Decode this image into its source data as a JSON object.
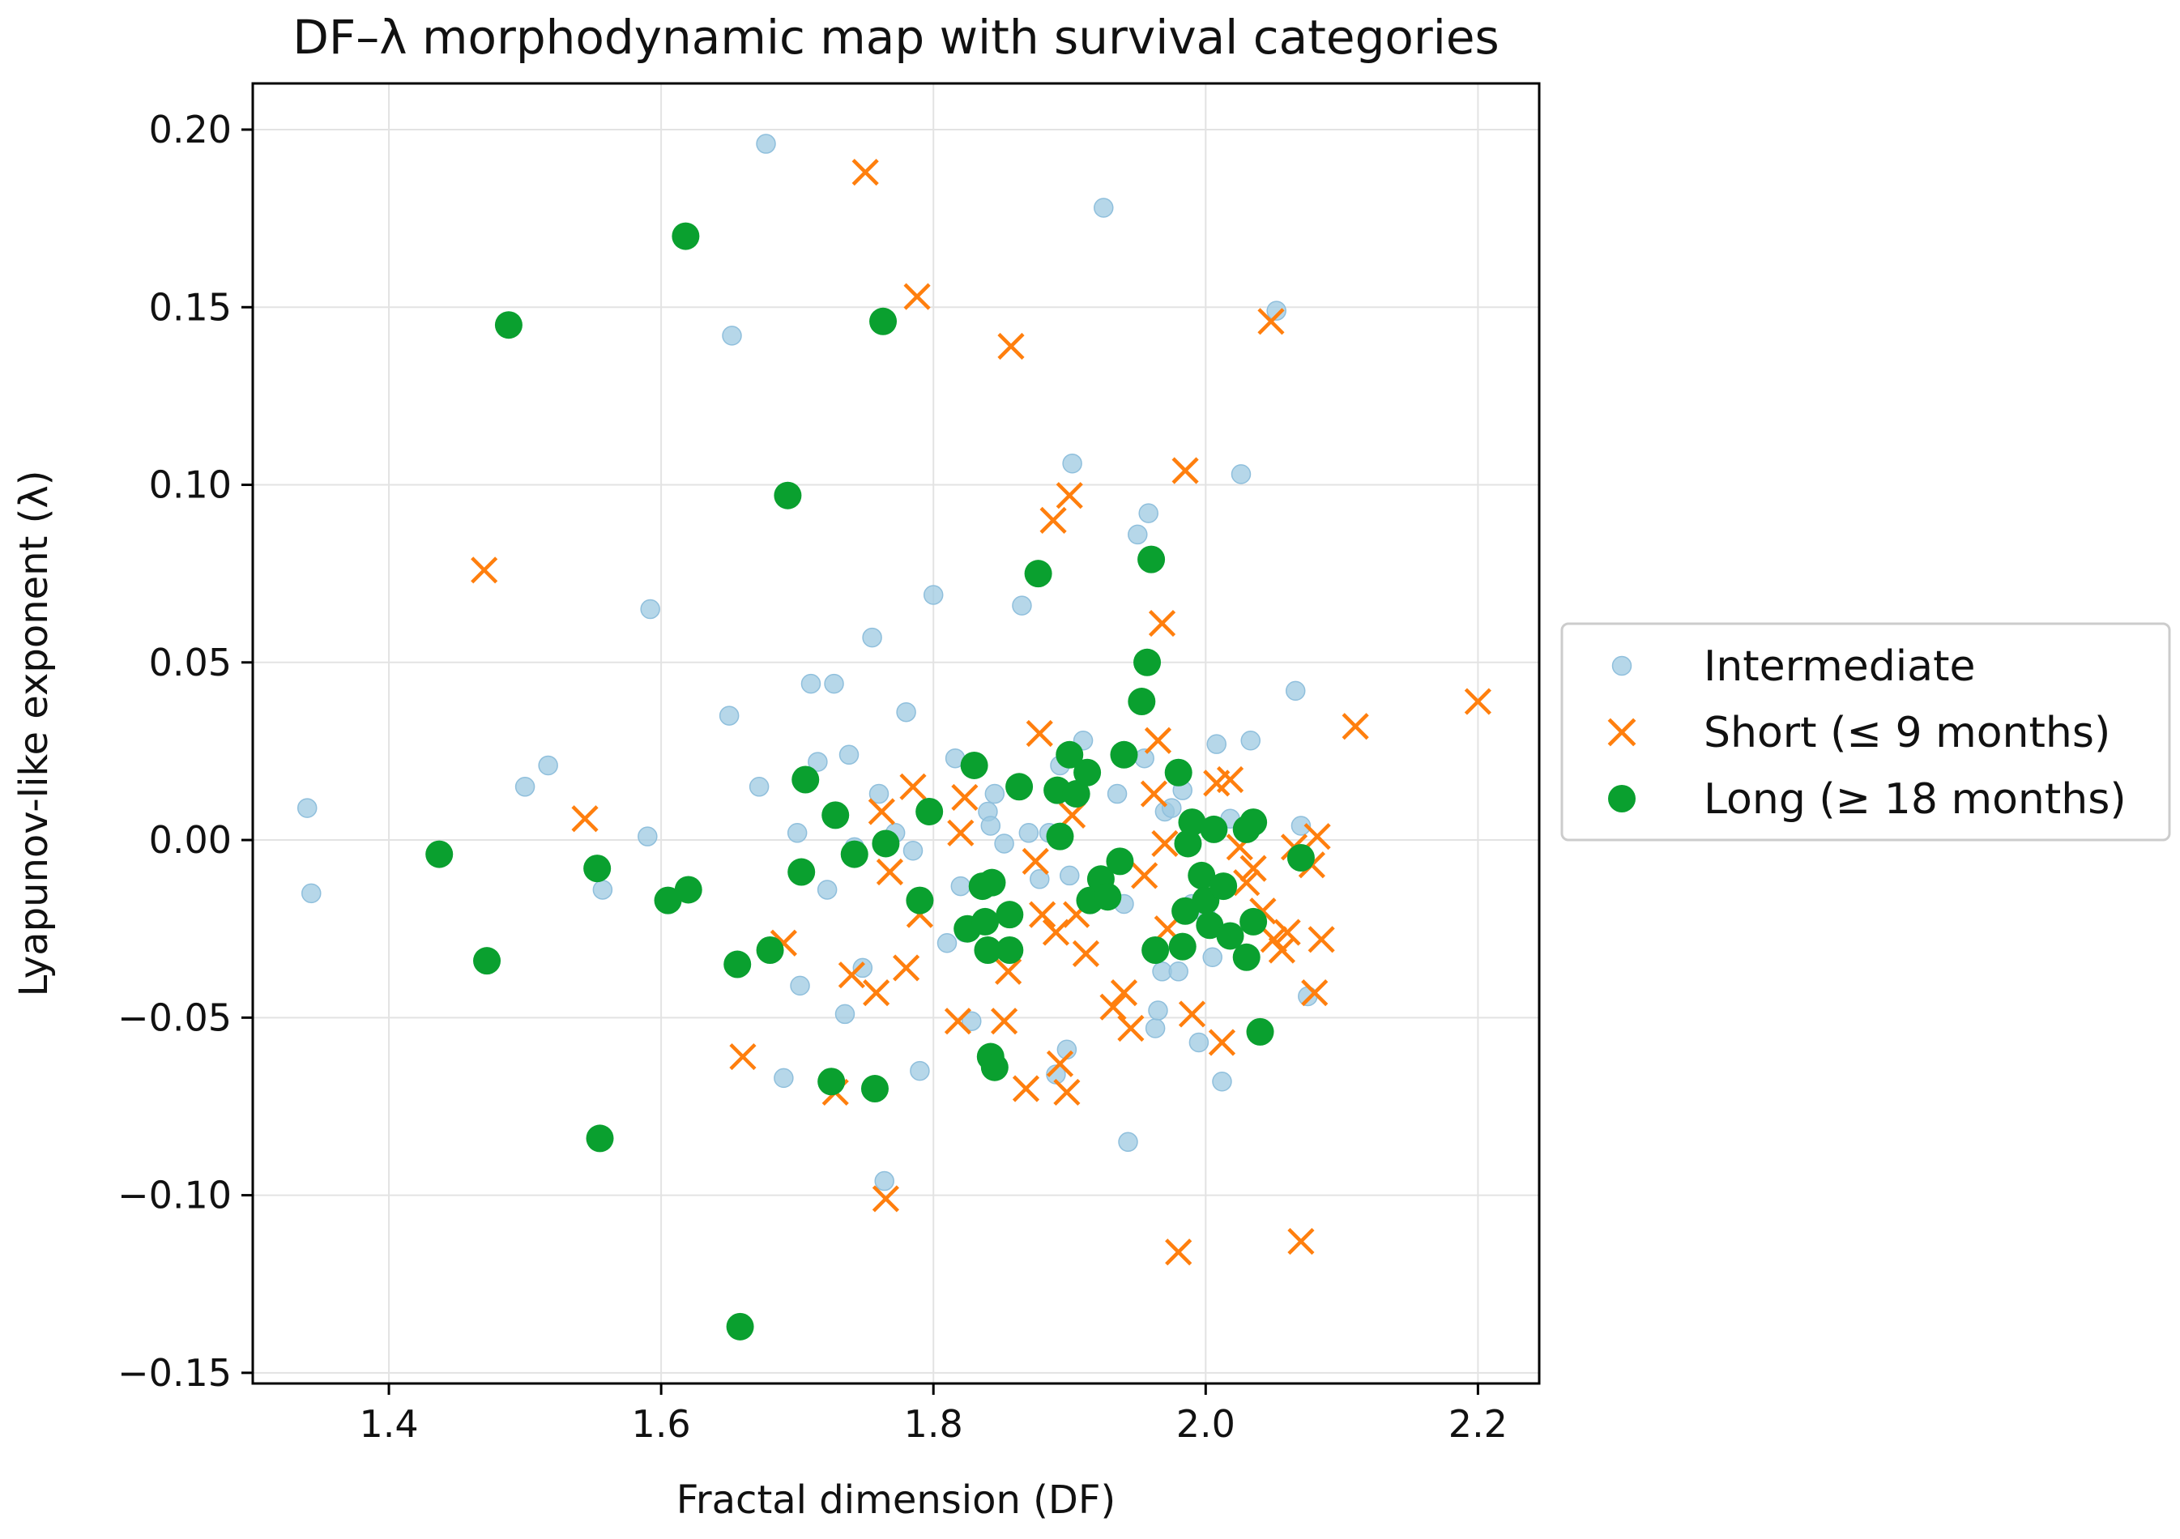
{
  "chart_data": {
    "type": "scatter",
    "title": "DF–λ morphodynamic map with survival categories",
    "xlabel": "Fractal dimension (DF)",
    "ylabel": "Lyapunov-like exponent (λ)",
    "xlim": [
      1.3,
      2.245
    ],
    "ylim": [
      -0.153,
      0.213
    ],
    "xticks": [
      1.4,
      1.6,
      1.8,
      2.0,
      2.2
    ],
    "xtick_labels": [
      "1.4",
      "1.6",
      "1.8",
      "2.0",
      "2.2"
    ],
    "yticks": [
      -0.15,
      -0.1,
      -0.05,
      0.0,
      0.05,
      0.1,
      0.15,
      0.2
    ],
    "ytick_labels": [
      "−0.15",
      "−0.10",
      "−0.05",
      "0.00",
      "0.05",
      "0.10",
      "0.15",
      "0.20"
    ],
    "grid": true,
    "legend_position": "right",
    "series": [
      {
        "name": "Intermediate",
        "marker": "circle",
        "color": "#9ecae1",
        "points": [
          [
            1.34,
            0.009
          ],
          [
            1.343,
            -0.015
          ],
          [
            1.5,
            0.015
          ],
          [
            1.517,
            0.021
          ],
          [
            1.557,
            -0.014
          ],
          [
            1.59,
            0.001
          ],
          [
            1.592,
            0.065
          ],
          [
            1.65,
            0.035
          ],
          [
            1.652,
            0.142
          ],
          [
            1.672,
            0.015
          ],
          [
            1.677,
            0.196
          ],
          [
            1.69,
            -0.067
          ],
          [
            1.7,
            0.002
          ],
          [
            1.702,
            -0.041
          ],
          [
            1.71,
            0.044
          ],
          [
            1.715,
            0.022
          ],
          [
            1.722,
            -0.014
          ],
          [
            1.727,
            0.044
          ],
          [
            1.735,
            -0.049
          ],
          [
            1.738,
            0.024
          ],
          [
            1.742,
            -0.002
          ],
          [
            1.748,
            -0.036
          ],
          [
            1.755,
            0.057
          ],
          [
            1.76,
            0.013
          ],
          [
            1.764,
            -0.096
          ],
          [
            1.772,
            0.002
          ],
          [
            1.78,
            0.036
          ],
          [
            1.785,
            -0.003
          ],
          [
            1.79,
            -0.065
          ],
          [
            1.8,
            0.069
          ],
          [
            1.81,
            -0.029
          ],
          [
            1.816,
            0.023
          ],
          [
            1.82,
            -0.013
          ],
          [
            1.823,
            -0.026
          ],
          [
            1.828,
            -0.051
          ],
          [
            1.84,
            0.008
          ],
          [
            1.842,
            0.004
          ],
          [
            1.845,
            0.013
          ],
          [
            1.852,
            -0.001
          ],
          [
            1.865,
            0.066
          ],
          [
            1.87,
            0.002
          ],
          [
            1.878,
            -0.011
          ],
          [
            1.885,
            0.002
          ],
          [
            1.89,
            -0.066
          ],
          [
            1.893,
            0.021
          ],
          [
            1.898,
            -0.059
          ],
          [
            1.9,
            -0.01
          ],
          [
            1.902,
            0.106
          ],
          [
            1.91,
            0.028
          ],
          [
            1.925,
            0.178
          ],
          [
            1.935,
            0.013
          ],
          [
            1.94,
            -0.018
          ],
          [
            1.943,
            -0.085
          ],
          [
            1.95,
            0.086
          ],
          [
            1.955,
            0.023
          ],
          [
            1.958,
            0.092
          ],
          [
            1.963,
            -0.053
          ],
          [
            1.965,
            -0.048
          ],
          [
            1.968,
            -0.037
          ],
          [
            1.97,
            0.008
          ],
          [
            1.975,
            0.009
          ],
          [
            1.98,
            -0.037
          ],
          [
            1.983,
            0.014
          ],
          [
            1.99,
            -0.018
          ],
          [
            1.995,
            -0.057
          ],
          [
            2.0,
            -0.021
          ],
          [
            2.005,
            -0.033
          ],
          [
            2.008,
            0.027
          ],
          [
            2.012,
            -0.068
          ],
          [
            2.018,
            0.006
          ],
          [
            2.026,
            0.103
          ],
          [
            2.033,
            0.028
          ],
          [
            2.052,
            0.149
          ],
          [
            2.066,
            0.042
          ],
          [
            2.07,
            0.004
          ],
          [
            2.075,
            -0.044
          ]
        ]
      },
      {
        "name": "Short (≤ 9 months)",
        "marker": "x",
        "color": "#ff7f0e",
        "points": [
          [
            1.47,
            0.076
          ],
          [
            1.544,
            0.006
          ],
          [
            1.66,
            -0.061
          ],
          [
            1.69,
            -0.029
          ],
          [
            1.728,
            -0.071
          ],
          [
            1.74,
            -0.038
          ],
          [
            1.75,
            0.188
          ],
          [
            1.758,
            -0.043
          ],
          [
            1.762,
            0.008
          ],
          [
            1.765,
            -0.101
          ],
          [
            1.768,
            -0.009
          ],
          [
            1.78,
            -0.036
          ],
          [
            1.785,
            0.015
          ],
          [
            1.788,
            0.153
          ],
          [
            1.79,
            -0.021
          ],
          [
            1.818,
            -0.051
          ],
          [
            1.82,
            0.002
          ],
          [
            1.823,
            0.012
          ],
          [
            1.855,
            -0.037
          ],
          [
            1.852,
            -0.051
          ],
          [
            1.857,
            0.139
          ],
          [
            1.868,
            -0.07
          ],
          [
            1.875,
            -0.006
          ],
          [
            1.878,
            0.03
          ],
          [
            1.88,
            -0.021
          ],
          [
            1.888,
            0.09
          ],
          [
            1.89,
            -0.026
          ],
          [
            1.893,
            -0.063
          ],
          [
            1.898,
            -0.071
          ],
          [
            1.9,
            0.097
          ],
          [
            1.902,
            0.007
          ],
          [
            1.905,
            -0.021
          ],
          [
            1.912,
            -0.032
          ],
          [
            1.932,
            -0.047
          ],
          [
            1.94,
            -0.043
          ],
          [
            1.945,
            -0.053
          ],
          [
            1.955,
            -0.01
          ],
          [
            1.962,
            0.013
          ],
          [
            1.965,
            0.028
          ],
          [
            1.968,
            0.061
          ],
          [
            1.97,
            -0.001
          ],
          [
            1.972,
            -0.025
          ],
          [
            1.98,
            -0.116
          ],
          [
            1.985,
            0.104
          ],
          [
            1.99,
            -0.049
          ],
          [
            2.008,
            0.016
          ],
          [
            2.012,
            -0.057
          ],
          [
            2.018,
            0.017
          ],
          [
            2.025,
            -0.002
          ],
          [
            2.03,
            -0.012
          ],
          [
            2.035,
            -0.008
          ],
          [
            2.042,
            -0.02
          ],
          [
            2.048,
            0.146
          ],
          [
            2.05,
            -0.028
          ],
          [
            2.056,
            -0.031
          ],
          [
            2.06,
            -0.026
          ],
          [
            2.065,
            -0.002
          ],
          [
            2.07,
            -0.113
          ],
          [
            2.078,
            -0.007
          ],
          [
            2.08,
            -0.043
          ],
          [
            2.082,
            0.001
          ],
          [
            2.085,
            -0.028
          ],
          [
            2.11,
            0.032
          ],
          [
            2.2,
            0.039
          ]
        ]
      },
      {
        "name": "Long (≥ 18 months)",
        "marker": "circle",
        "color": "#0aa02f",
        "points": [
          [
            1.437,
            -0.004
          ],
          [
            1.472,
            -0.034
          ],
          [
            1.488,
            0.145
          ],
          [
            1.553,
            -0.008
          ],
          [
            1.555,
            -0.084
          ],
          [
            1.605,
            -0.017
          ],
          [
            1.618,
            0.17
          ],
          [
            1.62,
            -0.014
          ],
          [
            1.656,
            -0.035
          ],
          [
            1.658,
            -0.137
          ],
          [
            1.68,
            -0.031
          ],
          [
            1.693,
            0.097
          ],
          [
            1.703,
            -0.009
          ],
          [
            1.706,
            0.017
          ],
          [
            1.725,
            -0.068
          ],
          [
            1.728,
            0.007
          ],
          [
            1.742,
            -0.004
          ],
          [
            1.757,
            -0.07
          ],
          [
            1.763,
            0.146
          ],
          [
            1.765,
            -0.001
          ],
          [
            1.79,
            -0.017
          ],
          [
            1.797,
            0.008
          ],
          [
            1.825,
            -0.025
          ],
          [
            1.83,
            0.021
          ],
          [
            1.836,
            -0.013
          ],
          [
            1.838,
            -0.023
          ],
          [
            1.84,
            -0.031
          ],
          [
            1.842,
            -0.061
          ],
          [
            1.843,
            -0.012
          ],
          [
            1.845,
            -0.064
          ],
          [
            1.856,
            -0.021
          ],
          [
            1.856,
            -0.031
          ],
          [
            1.863,
            0.015
          ],
          [
            1.877,
            0.075
          ],
          [
            1.891,
            0.014
          ],
          [
            1.893,
            0.001
          ],
          [
            1.9,
            0.024
          ],
          [
            1.905,
            0.013
          ],
          [
            1.913,
            0.019
          ],
          [
            1.915,
            -0.017
          ],
          [
            1.923,
            -0.011
          ],
          [
            1.928,
            -0.016
          ],
          [
            1.937,
            -0.006
          ],
          [
            1.94,
            0.024
          ],
          [
            1.953,
            0.039
          ],
          [
            1.957,
            0.05
          ],
          [
            1.96,
            0.079
          ],
          [
            1.963,
            -0.031
          ],
          [
            1.983,
            -0.03
          ],
          [
            1.98,
            0.019
          ],
          [
            1.985,
            -0.02
          ],
          [
            1.987,
            -0.001
          ],
          [
            1.99,
            0.005
          ],
          [
            1.997,
            -0.01
          ],
          [
            2.0,
            -0.017
          ],
          [
            2.003,
            -0.024
          ],
          [
            2.006,
            0.003
          ],
          [
            2.013,
            -0.013
          ],
          [
            2.018,
            -0.027
          ],
          [
            2.03,
            0.003
          ],
          [
            2.03,
            -0.033
          ],
          [
            2.035,
            -0.023
          ],
          [
            2.035,
            0.005
          ],
          [
            2.04,
            -0.054
          ],
          [
            2.07,
            -0.005
          ]
        ]
      }
    ]
  }
}
